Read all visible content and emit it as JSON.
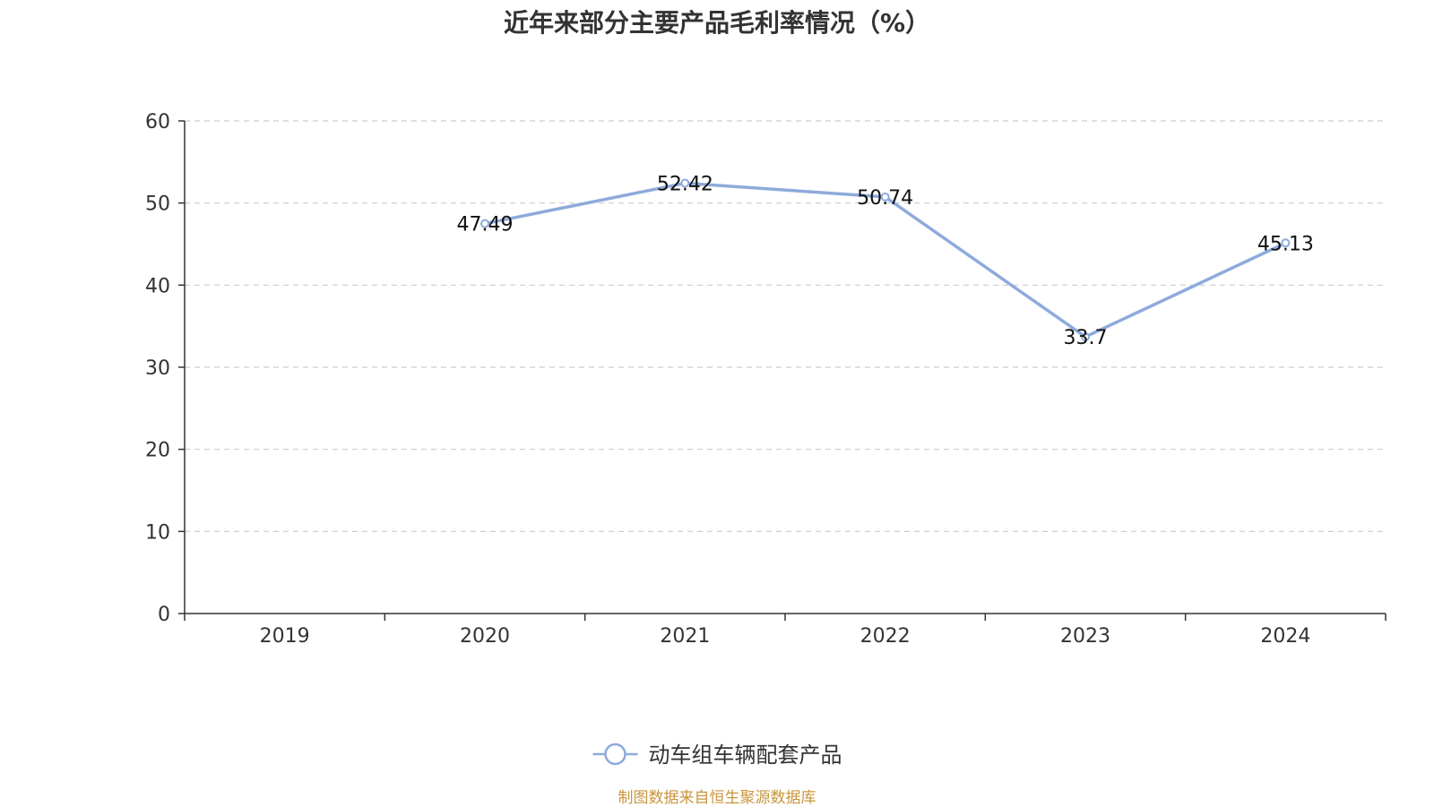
{
  "chart_data": {
    "type": "line",
    "title": "近年来部分主要产品毛利率情况（%）",
    "categories": [
      "2019",
      "2020",
      "2021",
      "2022",
      "2023",
      "2024"
    ],
    "series": [
      {
        "name": "动车组车辆配套产品",
        "values": [
          null,
          47.49,
          52.42,
          50.74,
          33.7,
          45.13
        ],
        "labels": [
          "",
          "47.49",
          "52.42",
          "50.74",
          "33.7",
          "45.13"
        ]
      }
    ],
    "ylim": [
      0,
      60
    ],
    "yticks": [
      "0",
      "10",
      "20",
      "30",
      "40",
      "50",
      "60"
    ],
    "grid": true,
    "legend_position": "bottom-center",
    "colors": {
      "line": "#8eaadb",
      "axis": "#333333",
      "grid": "#cccccc"
    }
  },
  "footer": {
    "source": "制图数据来自恒生聚源数据库"
  }
}
